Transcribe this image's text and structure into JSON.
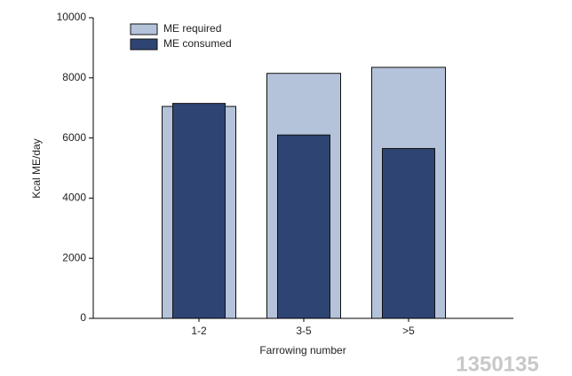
{
  "chart_data": {
    "type": "overlap-bar",
    "x_label": "Farrowing number",
    "y_label": "Kcal ME/day",
    "categories": [
      "1-2",
      "3-5",
      ">5"
    ],
    "series": [
      {
        "name": "ME required",
        "color": "#b4c3da",
        "values": [
          7050,
          8150,
          8350
        ]
      },
      {
        "name": "ME consumed",
        "color": "#2e4573",
        "values": [
          7150,
          6100,
          5650
        ]
      }
    ],
    "ylim": [
      0,
      10000
    ],
    "yticks": [
      0,
      2000,
      4000,
      6000,
      8000,
      10000
    ],
    "legend": "upper-left"
  },
  "watermark": "1350135"
}
